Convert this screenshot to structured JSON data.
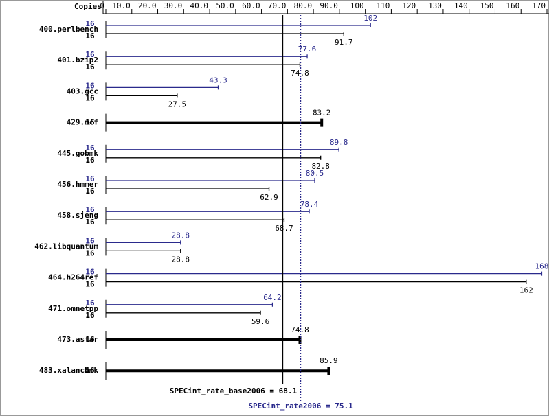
{
  "chart_data": {
    "type": "bar",
    "orientation": "horizontal",
    "copies_label": "Copies",
    "categories": [
      "400.perlbench",
      "401.bzip2",
      "403.gcc",
      "429.mcf",
      "445.gobmk",
      "456.hmmer",
      "458.sjeng",
      "462.libquantum",
      "464.h264ref",
      "471.omnetpp",
      "473.astar",
      "483.xalancbmk"
    ],
    "series": [
      {
        "color": "#2a2a8c",
        "copies": [
          16,
          16,
          16,
          null,
          16,
          16,
          16,
          16,
          16,
          16,
          null,
          null
        ],
        "values": [
          102,
          77.6,
          43.3,
          null,
          89.8,
          80.5,
          78.4,
          28.8,
          168,
          64.2,
          null,
          null
        ]
      },
      {
        "color": "#000000",
        "copies": [
          16,
          16,
          16,
          16,
          16,
          16,
          16,
          16,
          16,
          16,
          16,
          16
        ],
        "values": [
          91.7,
          74.8,
          27.5,
          83.2,
          82.8,
          62.9,
          68.7,
          28.8,
          162,
          59.6,
          74.8,
          85.9
        ]
      }
    ],
    "xlim": [
      0,
      170
    ],
    "xticks": [
      0,
      {
        "value": 10,
        "label": "10.0"
      },
      {
        "value": 20,
        "label": "20.0"
      },
      {
        "value": 30,
        "label": "30.0"
      },
      {
        "value": 40,
        "label": "40.0"
      },
      {
        "value": 50,
        "label": "50.0"
      },
      {
        "value": 60,
        "label": "60.0"
      },
      {
        "value": 70,
        "label": "70.0"
      },
      {
        "value": 80,
        "label": "80.0"
      },
      {
        "value": 90,
        "label": "90.0"
      },
      100,
      110,
      120,
      130,
      140,
      150,
      160,
      170
    ],
    "reference_lines": [
      {
        "label": "SPECint_rate_base2006 = 68.1",
        "value": 68.1,
        "color": "#000000",
        "style": "solid"
      },
      {
        "label": "SPECint_rate2006 = 75.1",
        "value": 75.1,
        "color": "#2a2a8c",
        "style": "dotted"
      }
    ]
  }
}
